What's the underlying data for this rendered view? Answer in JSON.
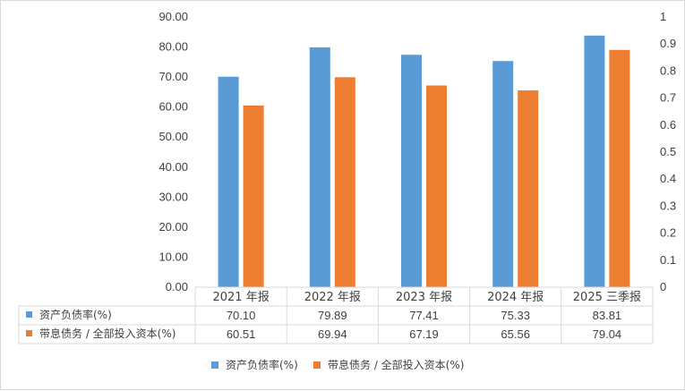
{
  "chart_data": {
    "type": "bar",
    "categories": [
      "2021 年报",
      "2022 年报",
      "2023 年报",
      "2024 年报",
      "2025 三季报"
    ],
    "series": [
      {
        "name": "资产负债率(%)",
        "values": [
          70.1,
          79.89,
          77.41,
          75.33,
          83.81
        ],
        "color": "#5b9bd5",
        "display": [
          "70.10",
          "79.89",
          "77.41",
          "75.33",
          "83.81"
        ]
      },
      {
        "name": "带息债务 / 全部投入资本(%)",
        "values": [
          60.51,
          69.94,
          67.19,
          65.56,
          79.04
        ],
        "color": "#ed7d31",
        "display": [
          "60.51",
          "69.94",
          "67.19",
          "65.56",
          "79.04"
        ]
      }
    ],
    "ylim": [
      0,
      90
    ],
    "yticks": [
      "0.00",
      "10.00",
      "20.00",
      "30.00",
      "40.00",
      "50.00",
      "60.00",
      "70.00",
      "80.00",
      "90.00"
    ],
    "y2lim": [
      0,
      1
    ],
    "y2ticks": [
      "0",
      "0.1",
      "0.2",
      "0.3",
      "0.4",
      "0.5",
      "0.6",
      "0.7",
      "0.8",
      "0.9",
      "1"
    ],
    "grid": false,
    "legend": "bottom",
    "data_table": true
  }
}
